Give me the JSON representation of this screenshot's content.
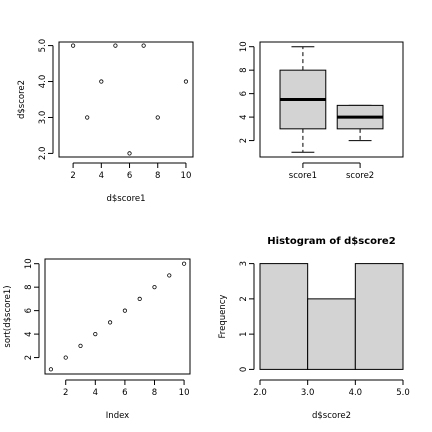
{
  "chart_data": [
    {
      "id": "scatter",
      "type": "scatter",
      "title": "",
      "xlabel": "d$score1",
      "ylabel": "d$score2",
      "x": [
        2,
        3,
        4,
        5,
        6,
        7,
        8,
        10
      ],
      "y": [
        5,
        3,
        4,
        5,
        2,
        5,
        3,
        4
      ],
      "xlim": [
        1,
        10.5
      ],
      "ylim": [
        1.9,
        5.1
      ],
      "xticks": [
        2,
        4,
        6,
        8,
        10
      ],
      "yticks": [
        2,
        3,
        4,
        5
      ],
      "ytick_labels": [
        "2.0",
        "3.0",
        "4.0",
        "5.0"
      ]
    },
    {
      "id": "boxplot",
      "type": "box",
      "title": "",
      "categories": [
        "score1",
        "score2"
      ],
      "boxes": [
        {
          "min": 1,
          "q1": 3,
          "median": 5.5,
          "q3": 8,
          "max": 10
        },
        {
          "min": 2,
          "q1": 3,
          "median": 4,
          "q3": 5,
          "max": 5
        }
      ],
      "ylim": [
        0.6,
        10.4
      ],
      "yticks": [
        2,
        4,
        6,
        8,
        10
      ],
      "fill": "#d3d3d3"
    },
    {
      "id": "index",
      "type": "scatter",
      "title": "",
      "xlabel": "Index",
      "ylabel": "sort(d$score1)",
      "x": [
        1,
        2,
        3,
        4,
        5,
        6,
        7,
        8,
        9,
        10
      ],
      "y": [
        1,
        2,
        3,
        4,
        5,
        6,
        7,
        8,
        9,
        10
      ],
      "xlim": [
        0.6,
        10.4
      ],
      "ylim": [
        0.6,
        10.4
      ],
      "xticks": [
        2,
        4,
        6,
        8,
        10
      ],
      "yticks": [
        2,
        4,
        6,
        8,
        10
      ]
    },
    {
      "id": "histogram",
      "type": "bar",
      "title": "Histogram of d$score2",
      "xlabel": "d$score2",
      "ylabel": "Frequency",
      "bins": [
        [
          2,
          3
        ],
        [
          3,
          4
        ],
        [
          4,
          5
        ]
      ],
      "values": [
        3,
        2,
        3
      ],
      "xlim": [
        2,
        5
      ],
      "ylim": [
        0,
        3
      ],
      "xticks": [
        2,
        3,
        4,
        5
      ],
      "xtick_labels": [
        "2.0",
        "3.0",
        "4.0",
        "5.0"
      ],
      "yticks": [
        0,
        1,
        2,
        3
      ],
      "fill": "#d3d3d3"
    }
  ]
}
